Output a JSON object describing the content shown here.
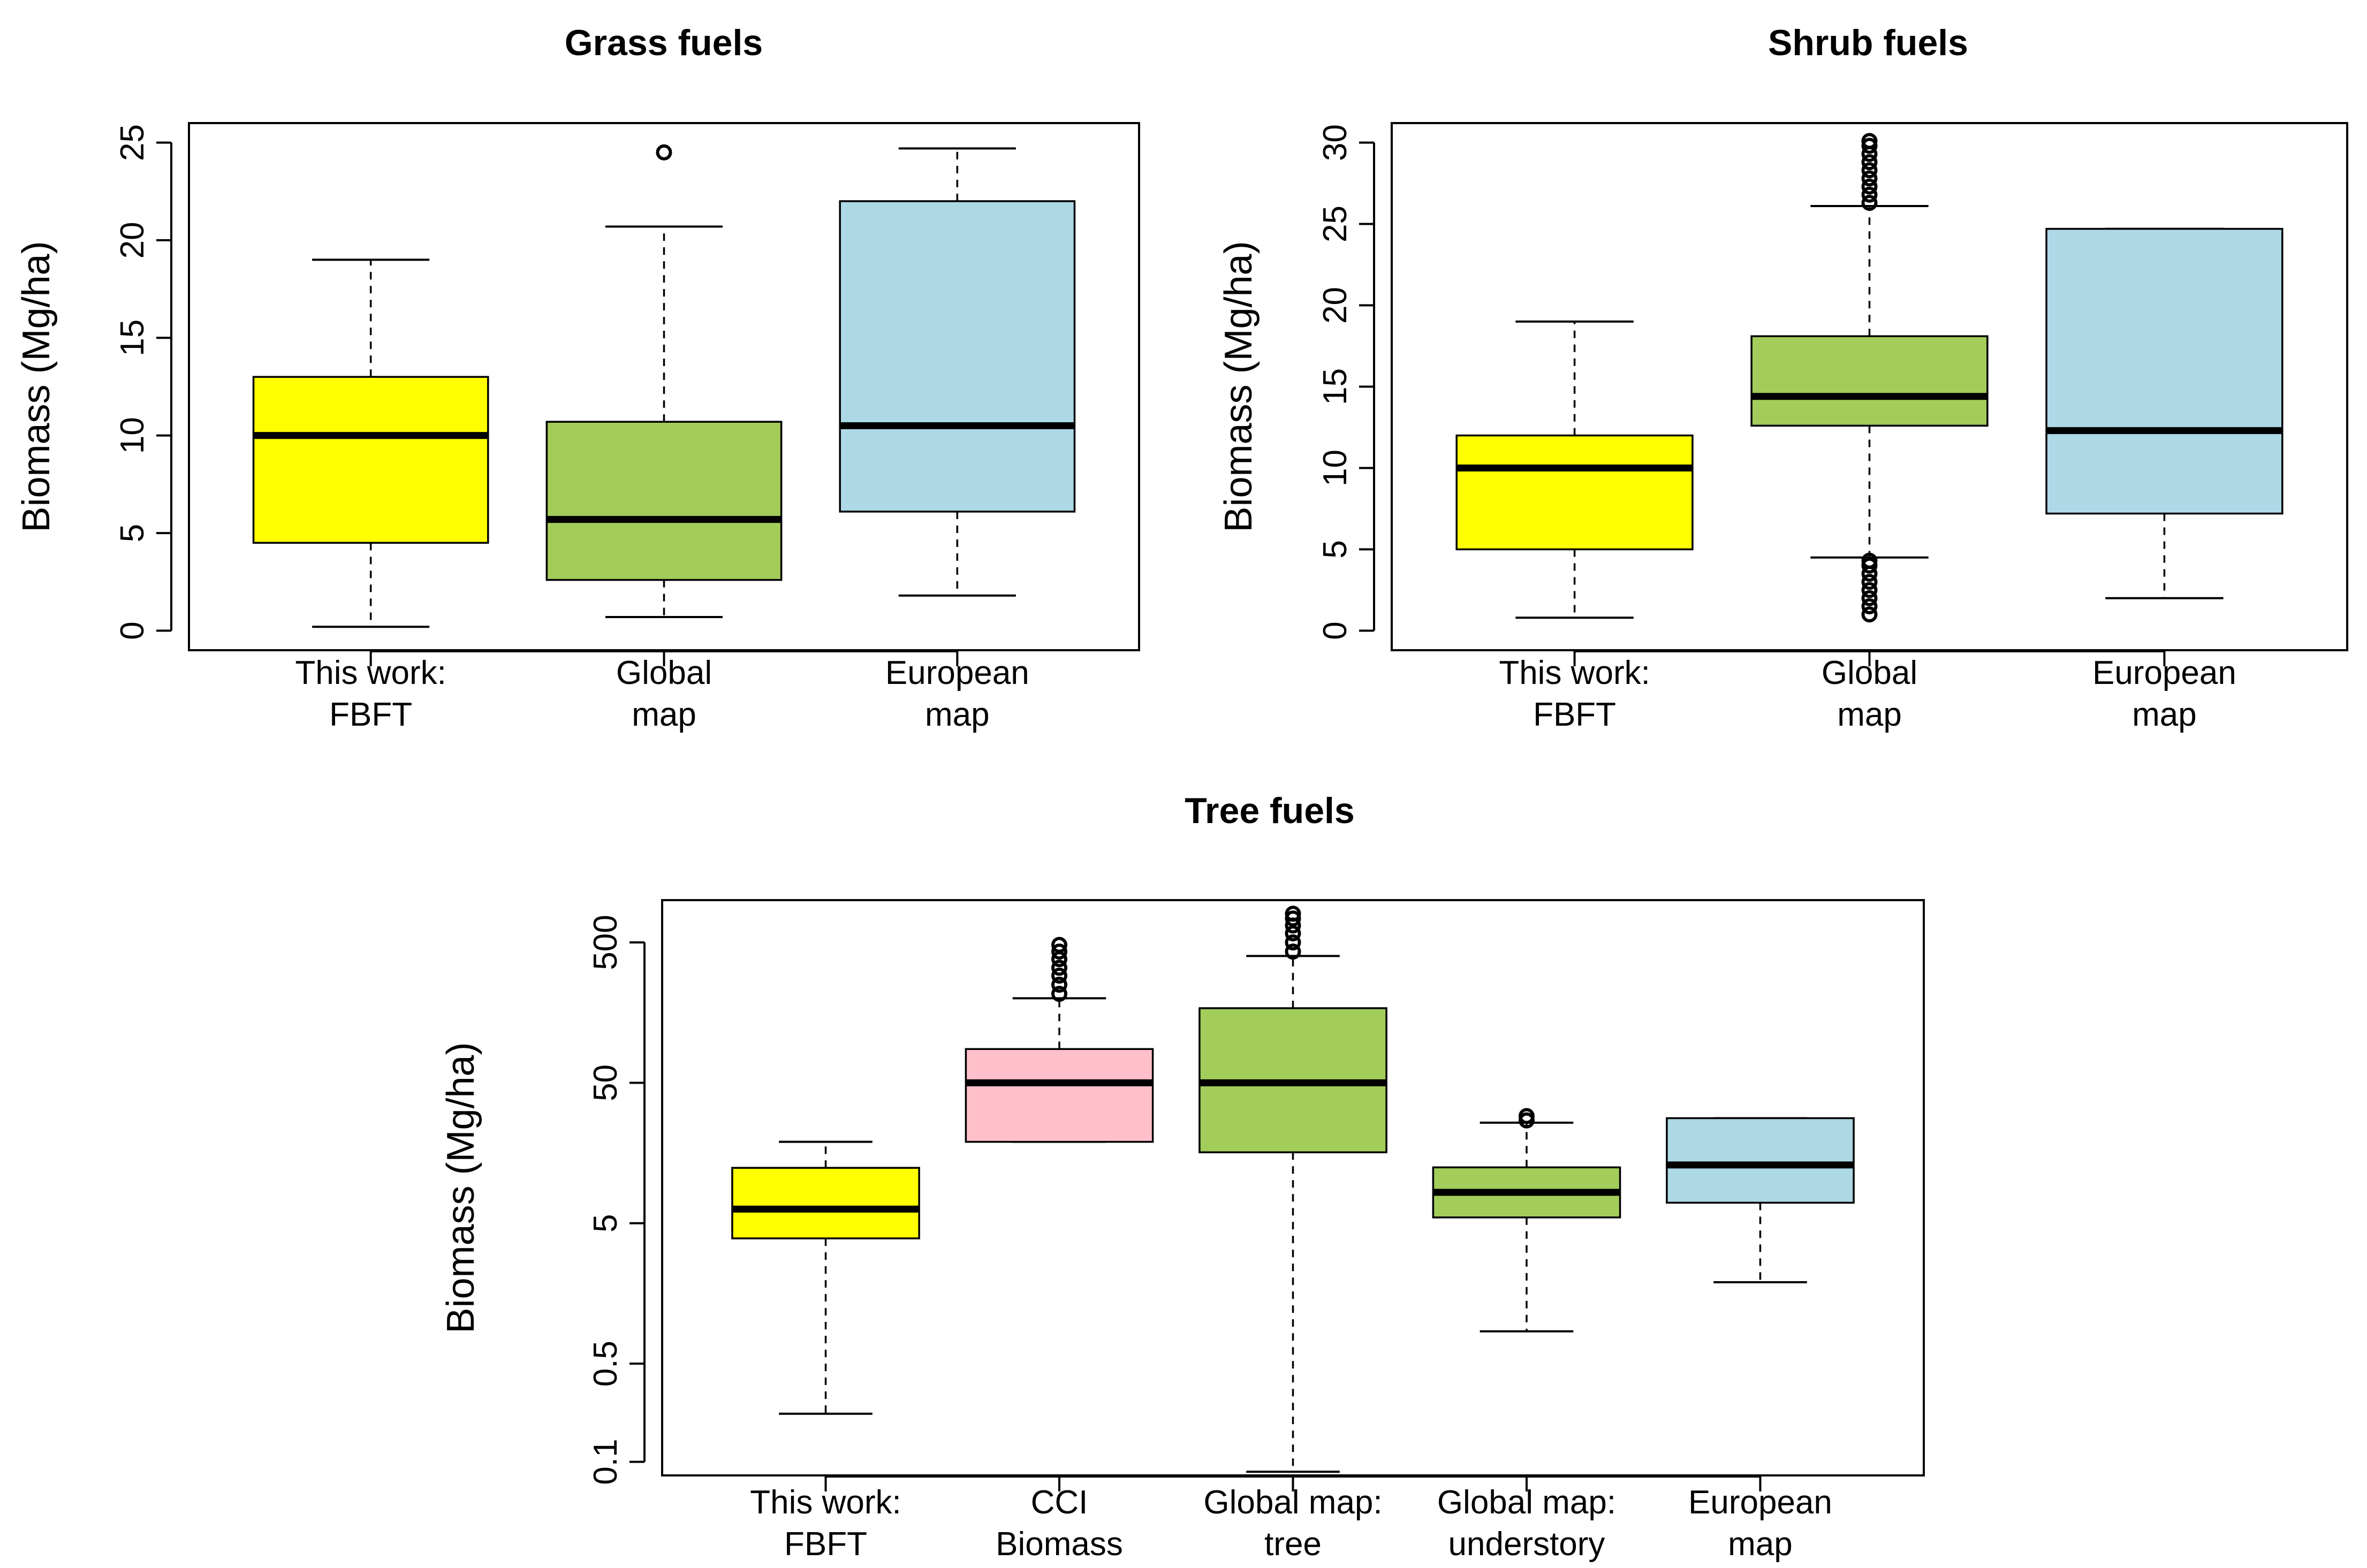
{
  "chart_data": [
    {
      "id": "grass",
      "type": "box",
      "title": "Grass fuels",
      "ylabel": "Biomass (Mg/ha)",
      "scale": "linear",
      "ylim": [
        0,
        25
      ],
      "yticks": [
        {
          "value": 0,
          "label": "0"
        },
        {
          "value": 5,
          "label": "5"
        },
        {
          "value": 10,
          "label": "10"
        },
        {
          "value": 15,
          "label": "15"
        },
        {
          "value": 20,
          "label": "20"
        },
        {
          "value": 25,
          "label": "25"
        }
      ],
      "boxes": [
        {
          "label": [
            "This work:",
            "FBFT"
          ],
          "color": "#ffff00",
          "whisker_low": 0.2,
          "q1": 4.5,
          "median": 10.0,
          "q3": 13.0,
          "whisker_high": 19.0,
          "outliers_low": [],
          "outliers_high": []
        },
        {
          "label": [
            "Global",
            "map"
          ],
          "color": "#a2cd5a",
          "whisker_low": 0.7,
          "q1": 2.6,
          "median": 5.7,
          "q3": 10.7,
          "whisker_high": 20.7,
          "outliers_low": [],
          "outliers_high": [
            24.5
          ]
        },
        {
          "label": [
            "European",
            "map"
          ],
          "color": "#add8e6",
          "whisker_low": 1.8,
          "q1": 6.1,
          "median": 10.5,
          "q3": 22.0,
          "whisker_high": 24.7,
          "outliers_low": [],
          "outliers_high": []
        }
      ]
    },
    {
      "id": "shrub",
      "type": "box",
      "title": "Shrub fuels",
      "ylabel": "Biomass (Mg/ha)",
      "scale": "linear",
      "ylim": [
        0,
        30
      ],
      "yticks": [
        {
          "value": 0,
          "label": "0"
        },
        {
          "value": 5,
          "label": "5"
        },
        {
          "value": 10,
          "label": "10"
        },
        {
          "value": 15,
          "label": "15"
        },
        {
          "value": 20,
          "label": "20"
        },
        {
          "value": 25,
          "label": "25"
        },
        {
          "value": 30,
          "label": "30"
        }
      ],
      "boxes": [
        {
          "label": [
            "This work:",
            "FBFT"
          ],
          "color": "#ffff00",
          "whisker_low": 0.8,
          "q1": 5.0,
          "median": 10.0,
          "q3": 12.0,
          "whisker_high": 19.0,
          "outliers_low": [],
          "outliers_high": []
        },
        {
          "label": [
            "Global",
            "map"
          ],
          "color": "#a2cd5a",
          "whisker_low": 4.5,
          "q1": 12.6,
          "median": 14.4,
          "q3": 18.1,
          "whisker_high": 26.1,
          "outliers_low": [
            1.0,
            1.5,
            2.0,
            2.5,
            3.0,
            3.5,
            4.0,
            4.3
          ],
          "outliers_high": [
            26.3,
            26.8,
            27.3,
            27.8,
            28.3,
            28.8,
            29.3,
            29.8,
            30.1
          ]
        },
        {
          "label": [
            "European",
            "map"
          ],
          "color": "#add8e6",
          "whisker_low": 2.0,
          "q1": 7.2,
          "median": 12.3,
          "q3": 24.7,
          "whisker_high": 24.7,
          "outliers_low": [],
          "outliers_high": []
        }
      ]
    },
    {
      "id": "tree",
      "type": "box",
      "title": "Tree fuels",
      "ylabel": "Biomass (Mg/ha)",
      "scale": "log",
      "ylim": [
        0.08,
        1000
      ],
      "yticks": [
        {
          "value": 0.1,
          "label": "0.1"
        },
        {
          "value": 0.5,
          "label": "0.5"
        },
        {
          "value": 5,
          "label": "5"
        },
        {
          "value": 50,
          "label": "50"
        },
        {
          "value": 500,
          "label": "500"
        }
      ],
      "boxes": [
        {
          "label": [
            "This work:",
            "FBFT"
          ],
          "color": "#ffff00",
          "whisker_low": 0.22,
          "q1": 3.9,
          "median": 6.3,
          "q3": 12.4,
          "whisker_high": 19.0,
          "outliers_low": [],
          "outliers_high": []
        },
        {
          "label": [
            "CCI",
            "Biomass"
          ],
          "color": "#ffc0cb",
          "whisker_low": 19.0,
          "q1": 19.0,
          "median": 50.0,
          "q3": 87.0,
          "whisker_high": 200.0,
          "outliers_low": [],
          "outliers_high": [
            215,
            250,
            290,
            330,
            380,
            430,
            480
          ]
        },
        {
          "label": [
            "Global map:",
            "tree"
          ],
          "color": "#a2cd5a",
          "whisker_low": 0.085,
          "q1": 16.0,
          "median": 50.0,
          "q3": 170.0,
          "whisker_high": 400.0,
          "outliers_low": [],
          "outliers_high": [
            430,
            500,
            580,
            660,
            740,
            800
          ]
        },
        {
          "label": [
            "Global map:",
            "understory"
          ],
          "color": "#a2cd5a",
          "whisker_low": 0.85,
          "q1": 5.5,
          "median": 8.3,
          "q3": 12.5,
          "whisker_high": 26.0,
          "outliers_low": [],
          "outliers_high": [
            27,
            29
          ]
        },
        {
          "label": [
            "European",
            "map"
          ],
          "color": "#add8e6",
          "whisker_low": 1.9,
          "q1": 7.0,
          "median": 13.0,
          "q3": 28.0,
          "whisker_high": 28.0,
          "outliers_low": [],
          "outliers_high": []
        }
      ]
    }
  ]
}
